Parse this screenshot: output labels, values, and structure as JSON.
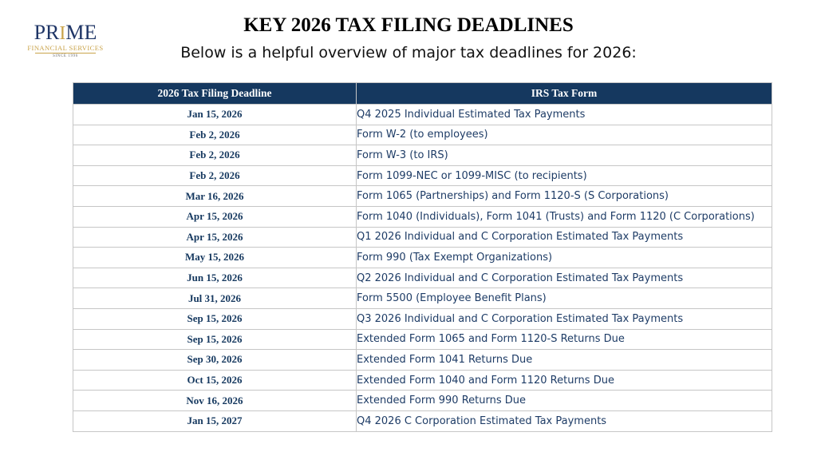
{
  "logo": {
    "word_pre": "PR",
    "word_i": "I",
    "word_post": "ME",
    "subtitle": "FINANCIAL SERVICES",
    "since": "SINCE 1996"
  },
  "title": "KEY 2026 TAX FILING DEADLINES",
  "subtitle": "Below is a helpful overview of major tax deadlines for 2026:",
  "table": {
    "headers": [
      "2026 Tax Filing Deadline",
      "IRS Tax Form"
    ],
    "rows": [
      [
        "Jan 15, 2026",
        "Q4 2025 Individual Estimated Tax Payments"
      ],
      [
        "Feb 2, 2026",
        "Form W-2 (to employees)"
      ],
      [
        "Feb 2, 2026",
        "Form W-3 (to IRS)"
      ],
      [
        "Feb 2, 2026",
        "Form 1099-NEC or 1099-MISC (to recipients)"
      ],
      [
        "Mar 16, 2026",
        "Form 1065 (Partnerships) and Form 1120-S (S Corporations)"
      ],
      [
        "Apr 15, 2026",
        "Form 1040 (Individuals), Form 1041 (Trusts) and Form 1120 (C Corporations)"
      ],
      [
        "Apr 15, 2026",
        "Q1 2026 Individual and C Corporation Estimated Tax Payments"
      ],
      [
        "May 15, 2026",
        "Form 990 (Tax Exempt Organizations)"
      ],
      [
        "Jun 15, 2026",
        "Q2 2026 Individual and C Corporation Estimated Tax Payments"
      ],
      [
        "Jul 31, 2026",
        "Form 5500 (Employee Benefit Plans)"
      ],
      [
        "Sep 15, 2026",
        "Q3 2026 Individual and C Corporation Estimated Tax Payments"
      ],
      [
        "Sep 15, 2026",
        "Extended Form 1065 and Form 1120-S Returns Due"
      ],
      [
        "Sep 30, 2026",
        "Extended Form 1041 Returns Due"
      ],
      [
        "Oct 15, 2026",
        "Extended Form 1040 and Form 1120 Returns Due"
      ],
      [
        "Nov 16, 2026",
        "Extended Form 990 Returns Due"
      ],
      [
        "Jan 15, 2027",
        "Q4 2026 C Corporation Estimated Tax Payments"
      ]
    ]
  },
  "colors": {
    "header_bg": "#15385f",
    "date_text": "#15385f",
    "form_text": "#1e3c66",
    "logo_navy": "#1f3566",
    "logo_gold": "#c9a34a"
  }
}
